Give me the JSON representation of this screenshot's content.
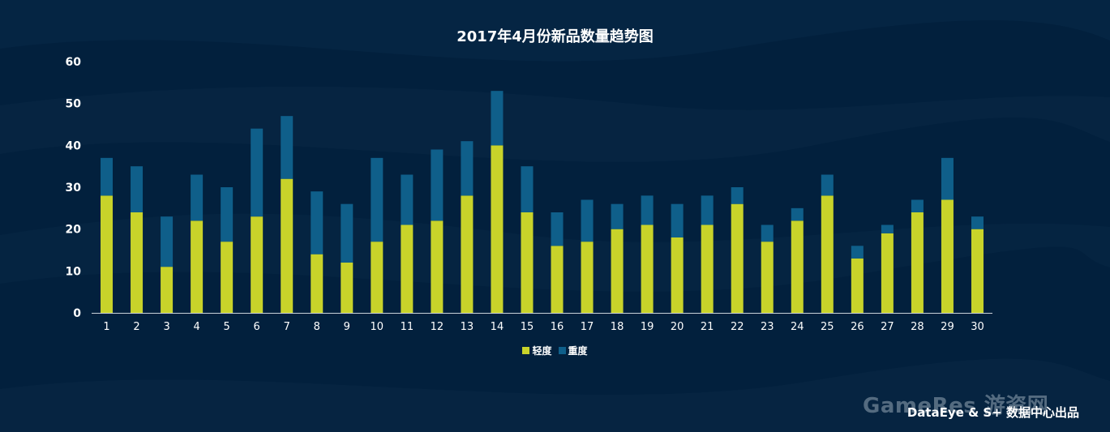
{
  "colors": {
    "background": "#02203d",
    "light": "#c8d32a",
    "heavy": "#0f5f8a",
    "text": "#ffffff"
  },
  "credit": "DataEye & S+ 数据中心出品",
  "watermark": "GameRes 游资网",
  "chart_data": {
    "type": "bar",
    "stacked": true,
    "title": "2017年4月份新品数量趋势图",
    "xlabel": "",
    "ylabel": "",
    "categories": [
      "1",
      "2",
      "3",
      "4",
      "5",
      "6",
      "7",
      "8",
      "9",
      "10",
      "11",
      "12",
      "13",
      "14",
      "15",
      "16",
      "17",
      "18",
      "19",
      "20",
      "21",
      "22",
      "23",
      "24",
      "25",
      "26",
      "27",
      "28",
      "29",
      "30"
    ],
    "series": [
      {
        "name": "轻度",
        "values": [
          28,
          24,
          11,
          22,
          17,
          23,
          32,
          14,
          12,
          17,
          21,
          22,
          28,
          40,
          24,
          16,
          17,
          20,
          21,
          18,
          21,
          26,
          17,
          22,
          28,
          13,
          19,
          24,
          27,
          20
        ]
      },
      {
        "name": "重度",
        "values": [
          9,
          11,
          12,
          11,
          13,
          21,
          15,
          15,
          14,
          20,
          12,
          17,
          13,
          13,
          11,
          8,
          10,
          6,
          7,
          8,
          7,
          4,
          4,
          3,
          5,
          3,
          2,
          3,
          10,
          3
        ]
      }
    ],
    "ylim": [
      0,
      60
    ],
    "yticks": [
      0,
      10,
      20,
      30,
      40,
      50,
      60
    ],
    "grid": false,
    "legend": "bottom-center"
  }
}
